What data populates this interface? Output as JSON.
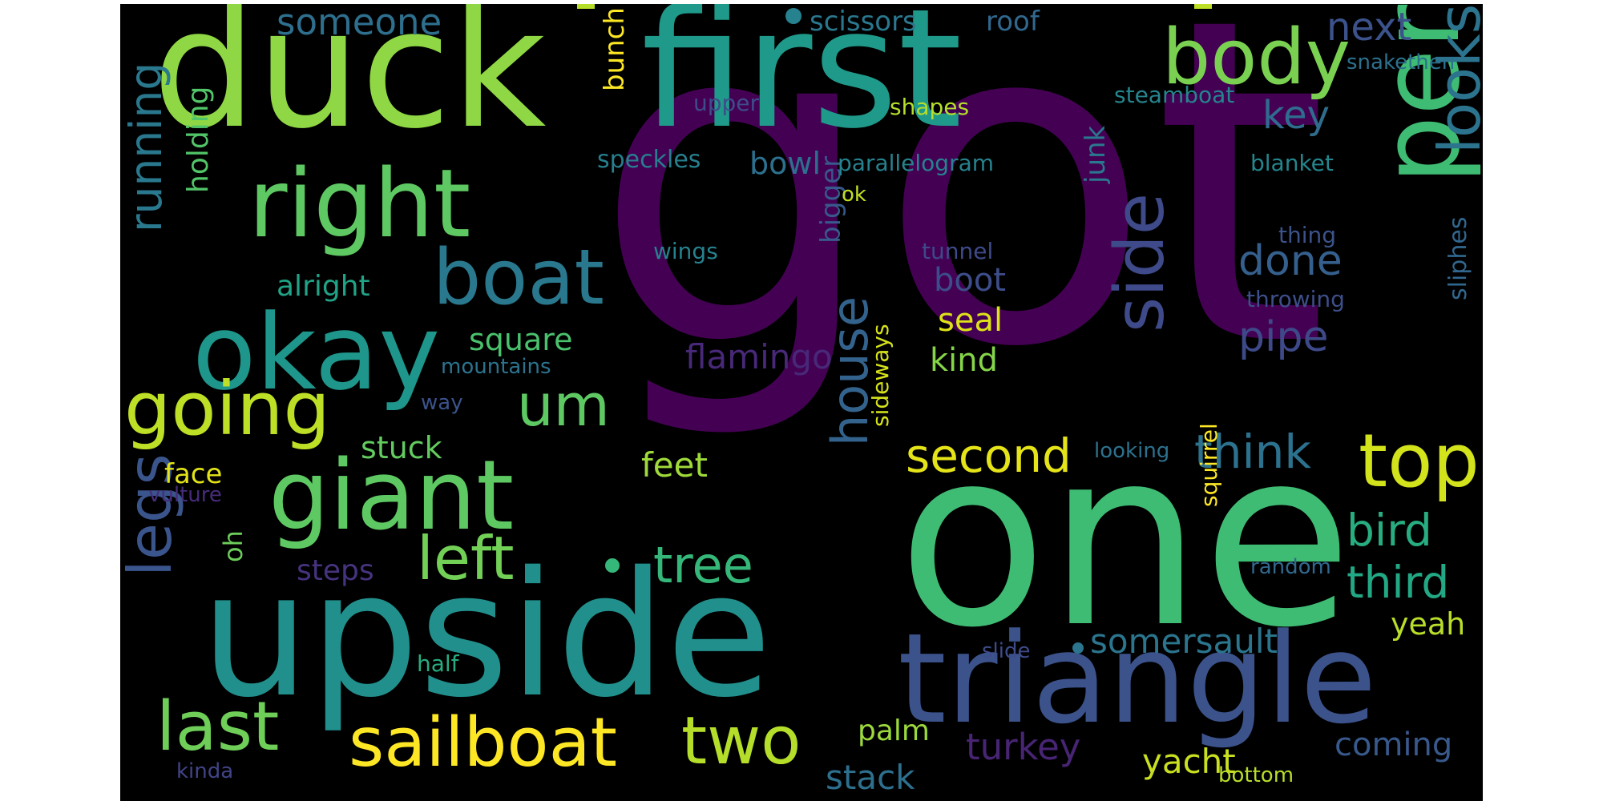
{
  "words": [
    {
      "id": "got",
      "text": "got",
      "color": "#440154"
    },
    {
      "id": "one",
      "text": "one",
      "color": "#3fbc73"
    },
    {
      "id": "upside",
      "text": "upside",
      "color": "#21908d"
    },
    {
      "id": "duck",
      "text": "duck",
      "color": "#8fd744"
    },
    {
      "id": "first",
      "text": "first",
      "color": "#1f998a"
    },
    {
      "id": "triangle",
      "text": "triangle",
      "color": "#3b528b"
    },
    {
      "id": "person",
      "text": "person",
      "color": "#3fbc73"
    },
    {
      "id": "okay",
      "text": "okay",
      "color": "#1f968b"
    },
    {
      "id": "giant",
      "text": "giant",
      "color": "#5ec962"
    },
    {
      "id": "right",
      "text": "right",
      "color": "#5ec962"
    },
    {
      "id": "boat",
      "text": "boat",
      "color": "#2a788e"
    },
    {
      "id": "body",
      "text": "body",
      "color": "#7ad151"
    },
    {
      "id": "going",
      "text": "going",
      "color": "#bddf26"
    },
    {
      "id": "top",
      "text": "top",
      "color": "#d2e21b"
    },
    {
      "id": "side",
      "text": "side",
      "color": "#3e4a89"
    },
    {
      "id": "sailboat",
      "text": "sailboat",
      "color": "#fde725"
    },
    {
      "id": "two",
      "text": "two",
      "color": "#b5de2b"
    },
    {
      "id": "last",
      "text": "last",
      "color": "#6ece58"
    },
    {
      "id": "left",
      "text": "left",
      "color": "#73d056"
    },
    {
      "id": "legs",
      "text": "legs",
      "color": "#3a548c"
    },
    {
      "id": "looks",
      "text": "looks",
      "color": "#2c738e"
    },
    {
      "id": "um",
      "text": "um",
      "color": "#5ec962"
    },
    {
      "id": "house",
      "text": "house",
      "color": "#33638d"
    },
    {
      "id": "tree",
      "text": "tree",
      "color": "#35b779"
    },
    {
      "id": "think",
      "text": "think",
      "color": "#2c728e"
    },
    {
      "id": "second",
      "text": "second",
      "color": "#e5e419"
    },
    {
      "id": "third",
      "text": "third",
      "color": "#22a884"
    },
    {
      "id": "bird",
      "text": "bird",
      "color": "#27ad81"
    },
    {
      "id": "running",
      "text": "running",
      "color": "#2a788e"
    },
    {
      "id": "done",
      "text": "done",
      "color": "#355f8d"
    },
    {
      "id": "pipe",
      "text": "pipe",
      "color": "#3e4989"
    },
    {
      "id": "key",
      "text": "key",
      "color": "#2f6c8e"
    },
    {
      "id": "next",
      "text": "next",
      "color": "#3b528b"
    },
    {
      "id": "someone",
      "text": "someone",
      "color": "#2e6f8e"
    },
    {
      "id": "turkey",
      "text": "turkey",
      "color": "#482475"
    },
    {
      "id": "coming",
      "text": "coming",
      "color": "#38598c"
    },
    {
      "id": "flamingo",
      "text": "flamingo",
      "color": "#482878"
    },
    {
      "id": "feet",
      "text": "feet",
      "color": "#9fda3a"
    },
    {
      "id": "stack",
      "text": "stack",
      "color": "#2d708e"
    },
    {
      "id": "yacht",
      "text": "yacht",
      "color": "#c8e020"
    },
    {
      "id": "somersault",
      "text": "somersault",
      "color": "#2b758e"
    },
    {
      "id": "kind",
      "text": "kind",
      "color": "#86d549"
    },
    {
      "id": "seal",
      "text": "seal",
      "color": "#dde318"
    },
    {
      "id": "boot",
      "text": "boot",
      "color": "#3d4d8a"
    },
    {
      "id": "square",
      "text": "square",
      "color": "#4ac16d"
    },
    {
      "id": "stuck",
      "text": "stuck",
      "color": "#63cb5f"
    },
    {
      "id": "steps",
      "text": "steps",
      "color": "#46337f"
    },
    {
      "id": "palm",
      "text": "palm",
      "color": "#9bd93c"
    },
    {
      "id": "yeah",
      "text": "yeah",
      "color": "#b8de29"
    },
    {
      "id": "alright",
      "text": "alright",
      "color": "#20a386"
    },
    {
      "id": "holding",
      "text": "holding",
      "color": "#52c569"
    },
    {
      "id": "bowl",
      "text": "bowl",
      "color": "#2d708e"
    },
    {
      "id": "bunch",
      "text": "bunch",
      "color": "#fde725"
    },
    {
      "id": "junk",
      "text": "junk",
      "color": "#2a788e"
    },
    {
      "id": "bigger",
      "text": "bigger",
      "color": "#38598c"
    },
    {
      "id": "scissors",
      "text": "scissors",
      "color": "#2a788e"
    },
    {
      "id": "roof",
      "text": "roof",
      "color": "#31688e"
    },
    {
      "id": "face",
      "text": "face",
      "color": "#e2e418"
    },
    {
      "id": "oh",
      "text": "oh",
      "color": "#6ccd5a"
    },
    {
      "id": "parallelogram",
      "text": "parallelogram",
      "color": "#26828e"
    },
    {
      "id": "speckles",
      "text": "speckles",
      "color": "#277f8e"
    },
    {
      "id": "upper",
      "text": "upper",
      "color": "#3e4c8a"
    },
    {
      "id": "shapes",
      "text": "shapes",
      "color": "#b5de2b"
    },
    {
      "id": "steamboat",
      "text": "steamboat",
      "color": "#25858e"
    },
    {
      "id": "blanket",
      "text": "blanket",
      "color": "#24868e"
    },
    {
      "id": "snakethen",
      "text": "snakethen",
      "color": "#2c718e"
    },
    {
      "id": "ok",
      "text": "ok",
      "color": "#c2df23"
    },
    {
      "id": "wings",
      "text": "wings",
      "color": "#26828e"
    },
    {
      "id": "tunnel",
      "text": "tunnel",
      "color": "#3e4a89"
    },
    {
      "id": "thing",
      "text": "thing",
      "color": "#3b528b"
    },
    {
      "id": "throwing",
      "text": "throwing",
      "color": "#3d4e8a"
    },
    {
      "id": "sliphes",
      "text": "sliphes",
      "color": "#31678e"
    },
    {
      "id": "mountains",
      "text": "mountains",
      "color": "#2c738e"
    },
    {
      "id": "way",
      "text": "way",
      "color": "#3b528b"
    },
    {
      "id": "looking",
      "text": "looking",
      "color": "#2d718e"
    },
    {
      "id": "sideways",
      "text": "sideways",
      "color": "#d5e21a"
    },
    {
      "id": "squirrel",
      "text": "squirrel",
      "color": "#fde725"
    },
    {
      "id": "random",
      "text": "random",
      "color": "#31688e"
    },
    {
      "id": "vulture",
      "text": "vulture",
      "color": "#472c7a"
    },
    {
      "id": "slide",
      "text": "slide",
      "color": "#3e4c8a"
    },
    {
      "id": "half",
      "text": "half",
      "color": "#27ad81"
    },
    {
      "id": "kinda",
      "text": "kinda",
      "color": "#414487"
    },
    {
      "id": "bottom",
      "text": "bottom",
      "color": "#b8de29"
    }
  ]
}
